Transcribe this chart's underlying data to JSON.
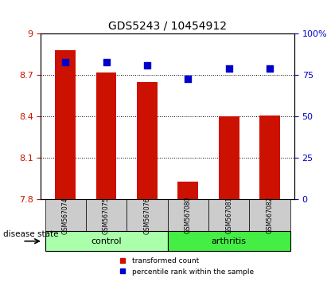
{
  "title": "GDS5243 / 10454912",
  "samples": [
    "GSM567074",
    "GSM567075",
    "GSM567076",
    "GSM567080",
    "GSM567081",
    "GSM567082"
  ],
  "transformed_count": [
    8.88,
    8.72,
    8.65,
    7.93,
    8.4,
    8.41
  ],
  "percentile_rank": [
    83,
    83,
    81,
    73,
    79,
    79
  ],
  "ylim_left": [
    7.8,
    9.0
  ],
  "ylim_right": [
    0,
    100
  ],
  "yticks_left": [
    7.8,
    8.1,
    8.4,
    8.7,
    9.0
  ],
  "ytick_labels_left": [
    "7.8",
    "8.1",
    "8.4",
    "8.7",
    "9"
  ],
  "yticks_right": [
    0,
    25,
    50,
    75,
    100
  ],
  "ytick_labels_right": [
    "0",
    "25",
    "50",
    "75",
    "100%"
  ],
  "bar_color": "#cc1100",
  "scatter_color": "#0000cc",
  "control_group": [
    "GSM567074",
    "GSM567075",
    "GSM567076"
  ],
  "arthritis_group": [
    "GSM567080",
    "GSM567081",
    "GSM567082"
  ],
  "control_color": "#aaffaa",
  "arthritis_color": "#44ee44",
  "label_bar": "transformed count",
  "label_scatter": "percentile rank within the sample",
  "disease_state_label": "disease state",
  "bottom_bar_height": 0.06,
  "group_label_control": "control",
  "group_label_arthritis": "arthritis"
}
